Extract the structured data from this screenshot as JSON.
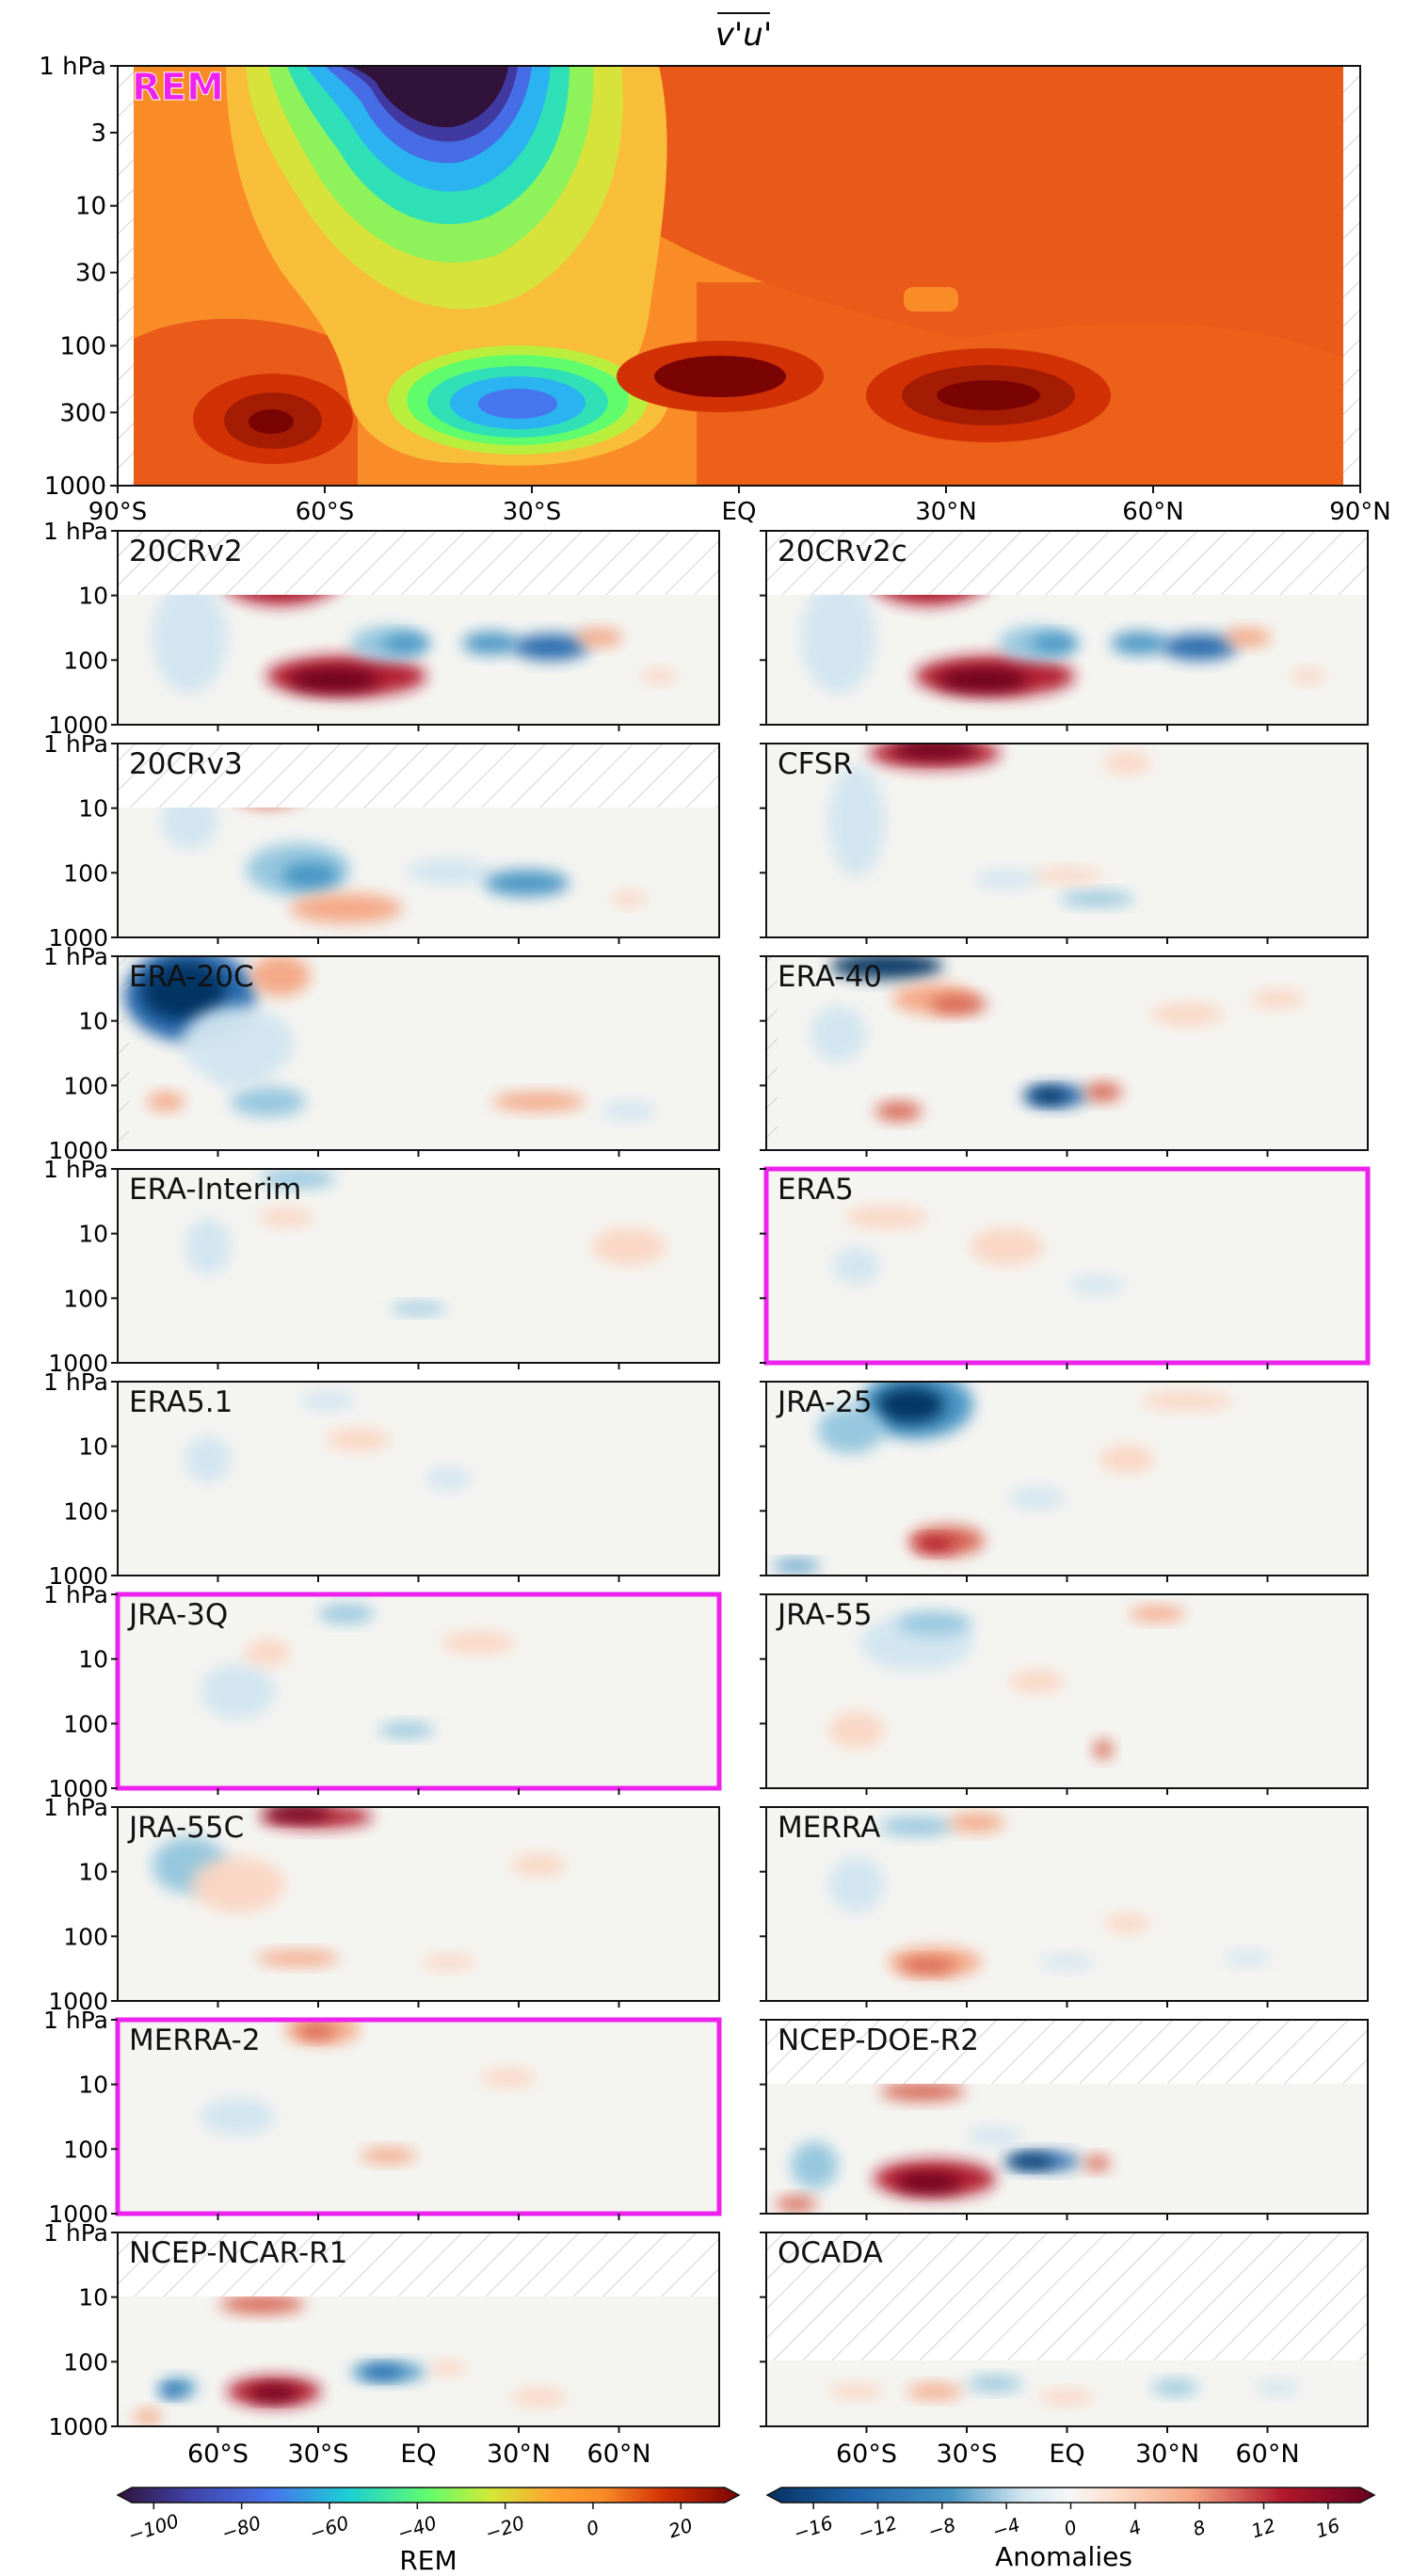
{
  "chart_data": {
    "type": "heatmap",
    "title": "v'u'",
    "top_panel": {
      "label": "REM",
      "y_ticks": [
        "1 hPa",
        "3",
        "10",
        "30",
        "100",
        "300",
        "1000"
      ],
      "x_ticks": [
        "90°S",
        "60°S",
        "30°S",
        "EQ",
        "30°N",
        "60°N",
        "90°N"
      ],
      "ylim": [
        1000,
        1
      ],
      "xlim": [
        -90,
        90
      ]
    },
    "panel_y_ticks": [
      "1 hPa",
      "10",
      "100",
      "1000"
    ],
    "panel_x_ticks": [
      "60°S",
      "30°S",
      "EQ",
      "30°N",
      "60°N"
    ],
    "panels": [
      {
        "label": "20CRv2",
        "highlight": false
      },
      {
        "label": "20CRv2c",
        "highlight": false
      },
      {
        "label": "20CRv3",
        "highlight": false
      },
      {
        "label": "CFSR",
        "highlight": false
      },
      {
        "label": "ERA-20C",
        "highlight": false
      },
      {
        "label": "ERA-40",
        "highlight": false
      },
      {
        "label": "ERA-Interim",
        "highlight": false
      },
      {
        "label": "ERA5",
        "highlight": true
      },
      {
        "label": "ERA5.1",
        "highlight": false
      },
      {
        "label": "JRA-25",
        "highlight": false
      },
      {
        "label": "JRA-3Q",
        "highlight": true
      },
      {
        "label": "JRA-55",
        "highlight": false
      },
      {
        "label": "JRA-55C",
        "highlight": false
      },
      {
        "label": "MERRA",
        "highlight": false
      },
      {
        "label": "MERRA-2",
        "highlight": true
      },
      {
        "label": "NCEP-DOE-R2",
        "highlight": false
      },
      {
        "label": "NCEP-NCAR-R1",
        "highlight": false
      },
      {
        "label": "OCADA",
        "highlight": false
      }
    ],
    "colorbar_rem": {
      "label": "REM",
      "ticks": [
        "−100",
        "−80",
        "−60",
        "−40",
        "−20",
        "0",
        "20"
      ],
      "range": [
        -105,
        30
      ]
    },
    "colorbar_anom": {
      "label": "Anomalies",
      "ticks": [
        "−16",
        "−12",
        "−8",
        "−4",
        "0",
        "4",
        "8",
        "12",
        "16"
      ],
      "range": [
        -18,
        18
      ]
    }
  },
  "colors": {
    "highlight": "#ee22ee",
    "rem_background": "#f98c27",
    "anom_background": "#f4f4f1"
  }
}
